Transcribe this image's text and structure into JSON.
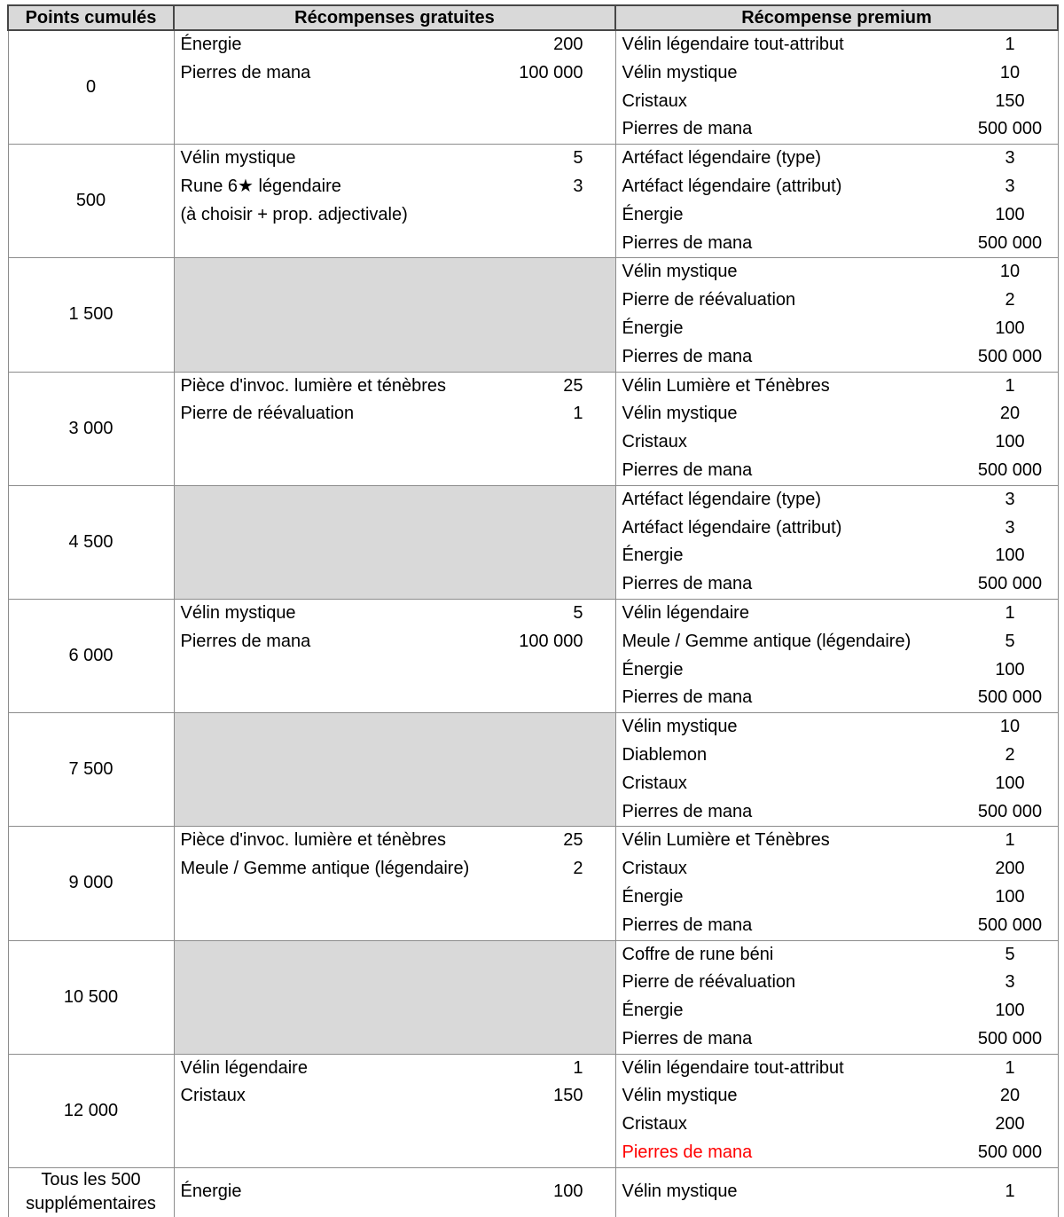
{
  "table": {
    "columns": [
      {
        "label": "Points cumulés"
      },
      {
        "label": "Récompenses gratuites"
      },
      {
        "label": "Récompense premium"
      }
    ],
    "colors": {
      "header_bg": "#d9d9d9",
      "shaded_empty_cell_bg": "#d9d9d9",
      "highlight_text": "#ff0000",
      "body_border": "#8c8c8c",
      "header_border": "#474747"
    },
    "rows": [
      {
        "points": "0",
        "free": [
          {
            "name": "Énergie",
            "qty": "200"
          },
          {
            "name": "Pierres de mana",
            "qty": "100 000"
          }
        ],
        "premium": [
          {
            "name": "Vélin légendaire tout-attribut",
            "qty": "1"
          },
          {
            "name": "Vélin mystique",
            "qty": "10"
          },
          {
            "name": "Cristaux",
            "qty": "150"
          },
          {
            "name": "Pierres de mana",
            "qty": "500 000"
          }
        ]
      },
      {
        "points": "500",
        "free": [
          {
            "name": "Vélin mystique",
            "qty": "5"
          },
          {
            "name": "Rune 6★ légendaire",
            "qty": "3"
          },
          {
            "name": "(à choisir + prop. adjectivale)",
            "qty": ""
          }
        ],
        "premium": [
          {
            "name": "Artéfact légendaire (type)",
            "qty": "3"
          },
          {
            "name": "Artéfact légendaire (attribut)",
            "qty": "3"
          },
          {
            "name": "Énergie",
            "qty": "100"
          },
          {
            "name": "Pierres de mana",
            "qty": "500 000"
          }
        ]
      },
      {
        "points": "1 500",
        "free": [],
        "premium": [
          {
            "name": "Vélin mystique",
            "qty": "10"
          },
          {
            "name": "Pierre de réévaluation",
            "qty": "2"
          },
          {
            "name": "Énergie",
            "qty": "100"
          },
          {
            "name": "Pierres de mana",
            "qty": "500 000"
          }
        ]
      },
      {
        "points": "3 000",
        "free": [
          {
            "name": "Pièce d'invoc. lumière et ténèbres",
            "qty": "25"
          },
          {
            "name": "Pierre de réévaluation",
            "qty": "1"
          }
        ],
        "premium": [
          {
            "name": "Vélin Lumière et Ténèbres",
            "qty": "1"
          },
          {
            "name": "Vélin mystique",
            "qty": "20"
          },
          {
            "name": "Cristaux",
            "qty": "100"
          },
          {
            "name": "Pierres de mana",
            "qty": "500 000"
          }
        ]
      },
      {
        "points": "4 500",
        "free": [],
        "premium": [
          {
            "name": "Artéfact légendaire (type)",
            "qty": "3"
          },
          {
            "name": "Artéfact légendaire (attribut)",
            "qty": "3"
          },
          {
            "name": "Énergie",
            "qty": "100"
          },
          {
            "name": "Pierres de mana",
            "qty": "500 000"
          }
        ]
      },
      {
        "points": "6 000",
        "free": [
          {
            "name": "Vélin mystique",
            "qty": "5"
          },
          {
            "name": "Pierres de mana",
            "qty": "100 000"
          }
        ],
        "premium": [
          {
            "name": "Vélin légendaire",
            "qty": "1"
          },
          {
            "name": "Meule / Gemme antique (légendaire)",
            "qty": "5"
          },
          {
            "name": "Énergie",
            "qty": "100"
          },
          {
            "name": "Pierres de mana",
            "qty": "500 000"
          }
        ]
      },
      {
        "points": "7 500",
        "free": [],
        "premium": [
          {
            "name": "Vélin mystique",
            "qty": "10"
          },
          {
            "name": "Diablemon",
            "qty": "2"
          },
          {
            "name": "Cristaux",
            "qty": "100"
          },
          {
            "name": "Pierres de mana",
            "qty": "500 000"
          }
        ]
      },
      {
        "points": "9 000",
        "free": [
          {
            "name": "Pièce d'invoc. lumière et ténèbres",
            "qty": "25"
          },
          {
            "name": "Meule / Gemme antique (légendaire)",
            "qty": "2"
          }
        ],
        "premium": [
          {
            "name": "Vélin Lumière et Ténèbres",
            "qty": "1"
          },
          {
            "name": "Cristaux",
            "qty": "200"
          },
          {
            "name": "Énergie",
            "qty": "100"
          },
          {
            "name": "Pierres de mana",
            "qty": "500 000"
          }
        ]
      },
      {
        "points": "10 500",
        "free": [],
        "premium": [
          {
            "name": "Coffre de rune béni",
            "qty": "5"
          },
          {
            "name": "Pierre de réévaluation",
            "qty": "3"
          },
          {
            "name": "Énergie",
            "qty": "100"
          },
          {
            "name": "Pierres de mana",
            "qty": "500 000"
          }
        ]
      },
      {
        "points": "12 000",
        "free": [
          {
            "name": "Vélin légendaire",
            "qty": "1"
          },
          {
            "name": "Cristaux",
            "qty": "150"
          }
        ],
        "premium": [
          {
            "name": "Vélin légendaire tout-attribut",
            "qty": "1"
          },
          {
            "name": "Vélin mystique",
            "qty": "20"
          },
          {
            "name": "Cristaux",
            "qty": "200"
          },
          {
            "name": "Pierres de mana",
            "qty": "500 000",
            "highlight": true
          }
        ]
      },
      {
        "points": "Tous les 500 supplémentaires",
        "compact": true,
        "free": [
          {
            "name": "Énergie",
            "qty": "100"
          }
        ],
        "premium": [
          {
            "name": "Vélin mystique",
            "qty": "1"
          }
        ]
      }
    ]
  }
}
